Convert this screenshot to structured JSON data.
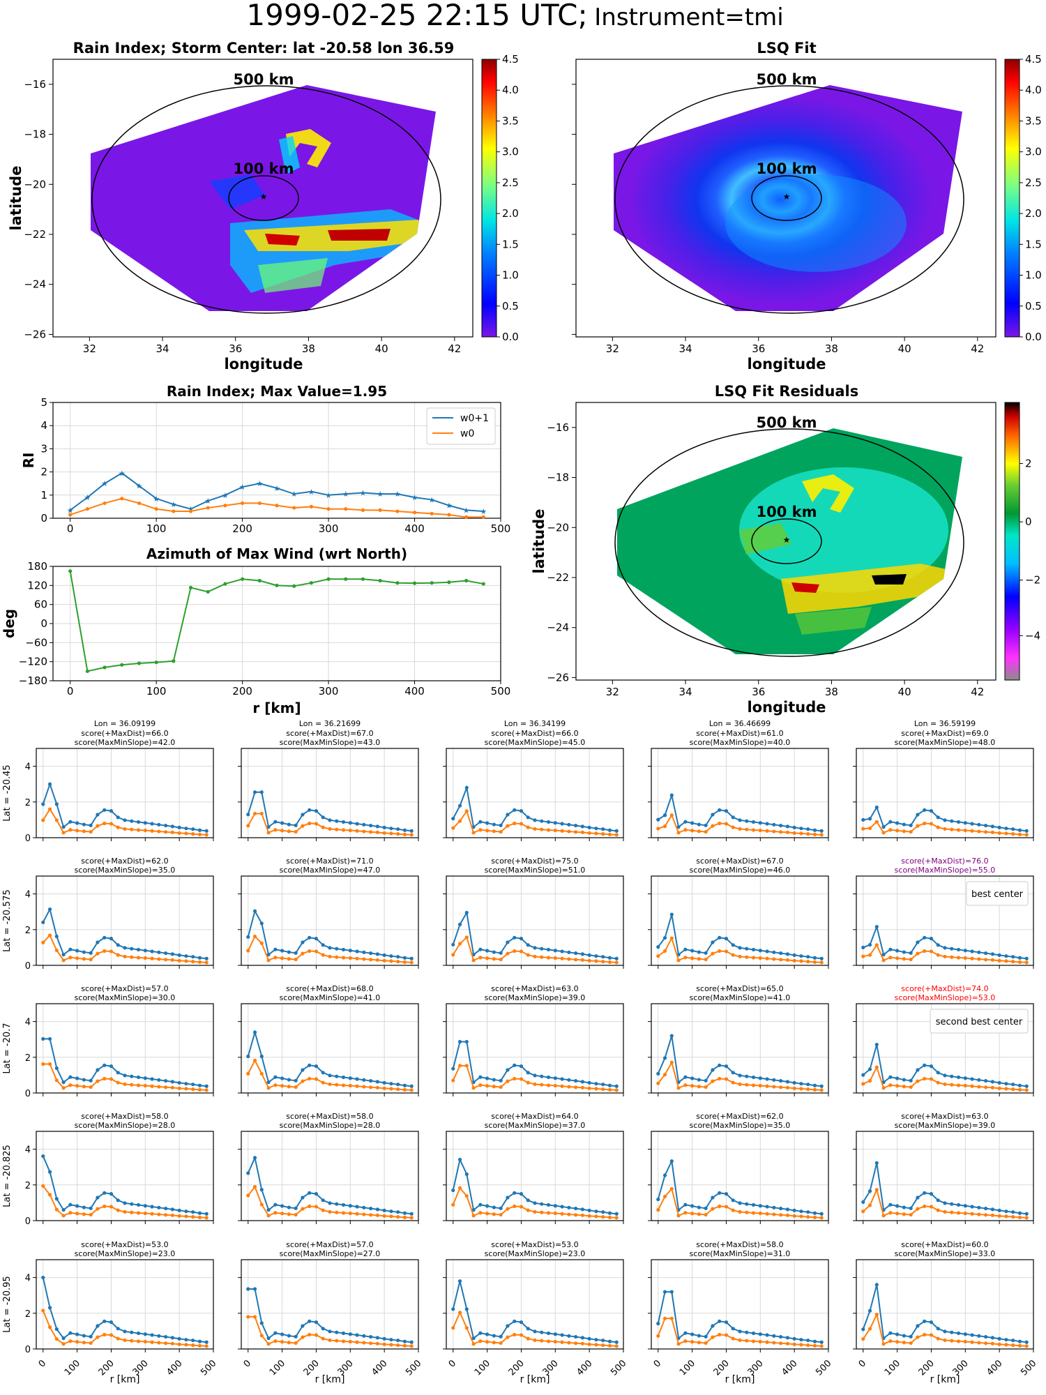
{
  "header": {
    "date": "1999-02-25 22:15 UTC;",
    "instrument": "Instrument=tmi"
  },
  "maps": {
    "rain_index": {
      "title": "Rain Index; Storm Center: lat -20.58 lon 36.59"
    },
    "lsq_fit": {
      "title": "LSQ Fit"
    },
    "residuals": {
      "title": "LSQ Fit Residuals"
    },
    "ring_outer_label": "500 km",
    "ring_inner_label": "100 km",
    "xlabel": "longitude",
    "ylabel": "latitude",
    "xticks": [
      32,
      34,
      36,
      38,
      40,
      42
    ],
    "yticks": [
      -16,
      -18,
      -20,
      -22,
      -24,
      -26
    ],
    "colorbar_ticks": [
      "0.0",
      "0.5",
      "1.0",
      "1.5",
      "2.0",
      "2.5",
      "3.0",
      "3.5",
      "4.0",
      "4.5"
    ],
    "residual_colorbar_ticks": [
      "2",
      "0",
      "−2",
      "−4"
    ]
  },
  "chart_data": [
    {
      "type": "line",
      "title": "Rain Index; Max Value=1.95",
      "ylabel": "RI",
      "ylim": [
        0,
        5
      ],
      "xlim": [
        -20,
        500
      ],
      "x": [
        0,
        20,
        40,
        60,
        80,
        100,
        120,
        140,
        160,
        180,
        200,
        220,
        240,
        260,
        280,
        300,
        320,
        340,
        360,
        380,
        400,
        420,
        440,
        460,
        480
      ],
      "series": [
        {
          "name": "w0+1",
          "color": "#1f77b4",
          "values": [
            0.35,
            0.9,
            1.5,
            1.95,
            1.4,
            0.85,
            0.6,
            0.4,
            0.75,
            1.0,
            1.35,
            1.5,
            1.3,
            1.05,
            1.15,
            1.0,
            1.05,
            1.1,
            1.05,
            1.05,
            0.9,
            0.8,
            0.55,
            0.35,
            0.3
          ]
        },
        {
          "name": "w0",
          "color": "#ff7f0e",
          "values": [
            0.15,
            0.4,
            0.65,
            0.85,
            0.65,
            0.4,
            0.3,
            0.3,
            0.45,
            0.55,
            0.65,
            0.65,
            0.55,
            0.45,
            0.5,
            0.4,
            0.4,
            0.35,
            0.35,
            0.3,
            0.25,
            0.2,
            0.15,
            0.05,
            0.05
          ]
        }
      ],
      "legend": "top-right"
    },
    {
      "type": "line",
      "title": "Azimuth of Max Wind (wrt North)",
      "ylabel": "deg",
      "xlabel": "r [km]",
      "ylim": [
        -180,
        180
      ],
      "yticks": [
        180,
        120,
        60,
        0,
        -60,
        -120,
        -180
      ],
      "x": [
        0,
        20,
        40,
        60,
        80,
        100,
        120,
        140,
        160,
        180,
        200,
        220,
        240,
        260,
        280,
        300,
        320,
        340,
        360,
        380,
        400,
        420,
        440,
        460,
        480
      ],
      "series": [
        {
          "color": "#2ca02c",
          "values": [
            165,
            -150,
            -138,
            -130,
            -125,
            -122,
            -118,
            113,
            100,
            125,
            140,
            135,
            120,
            118,
            128,
            140,
            140,
            140,
            135,
            128,
            127,
            128,
            130,
            135,
            125
          ]
        }
      ]
    },
    {
      "type": "line",
      "grid_rows": [
        "Lat = -20.45",
        "Lat = -20.575",
        "Lat = -20.7",
        "Lat = -20.825",
        "Lat = -20.95"
      ],
      "grid_cols": [
        "Lon = 36.09199",
        "Lon = 36.21699",
        "Lon = 36.34199",
        "Lon = 36.46699",
        "Lon = 36.59199"
      ],
      "xlabel": "r [km]",
      "ylim": [
        0,
        5
      ],
      "yticks": [
        0,
        2,
        4
      ],
      "xticks": [
        0,
        100,
        200,
        300,
        400,
        500
      ],
      "scores": [
        [
          [
            "66.0",
            "42.0"
          ],
          [
            "67.0",
            "43.0"
          ],
          [
            "66.0",
            "45.0"
          ],
          [
            "61.0",
            "40.0"
          ],
          [
            "69.0",
            "48.0"
          ]
        ],
        [
          [
            "62.0",
            "35.0"
          ],
          [
            "71.0",
            "47.0"
          ],
          [
            "75.0",
            "51.0"
          ],
          [
            "67.0",
            "46.0"
          ],
          [
            "76.0",
            "55.0"
          ]
        ],
        [
          [
            "57.0",
            "30.0"
          ],
          [
            "68.0",
            "41.0"
          ],
          [
            "63.0",
            "39.0"
          ],
          [
            "65.0",
            "41.0"
          ],
          [
            "74.0",
            "53.0"
          ]
        ],
        [
          [
            "58.0",
            "28.0"
          ],
          [
            "58.0",
            "28.0"
          ],
          [
            "64.0",
            "37.0"
          ],
          [
            "62.0",
            "35.0"
          ],
          [
            "63.0",
            "39.0"
          ]
        ],
        [
          [
            "53.0",
            "23.0"
          ],
          [
            "57.0",
            "27.0"
          ],
          [
            "53.0",
            "23.0"
          ],
          [
            "58.0",
            "31.0"
          ],
          [
            "60.0",
            "33.0"
          ]
        ]
      ],
      "score_label_a": "score(+MaxDist)=",
      "score_label_b": "score(MaxMinSlope)=",
      "best_center_label": "best center",
      "second_best_label": "second best center",
      "best_color": "#800080",
      "second_color": "#ff0000"
    }
  ]
}
